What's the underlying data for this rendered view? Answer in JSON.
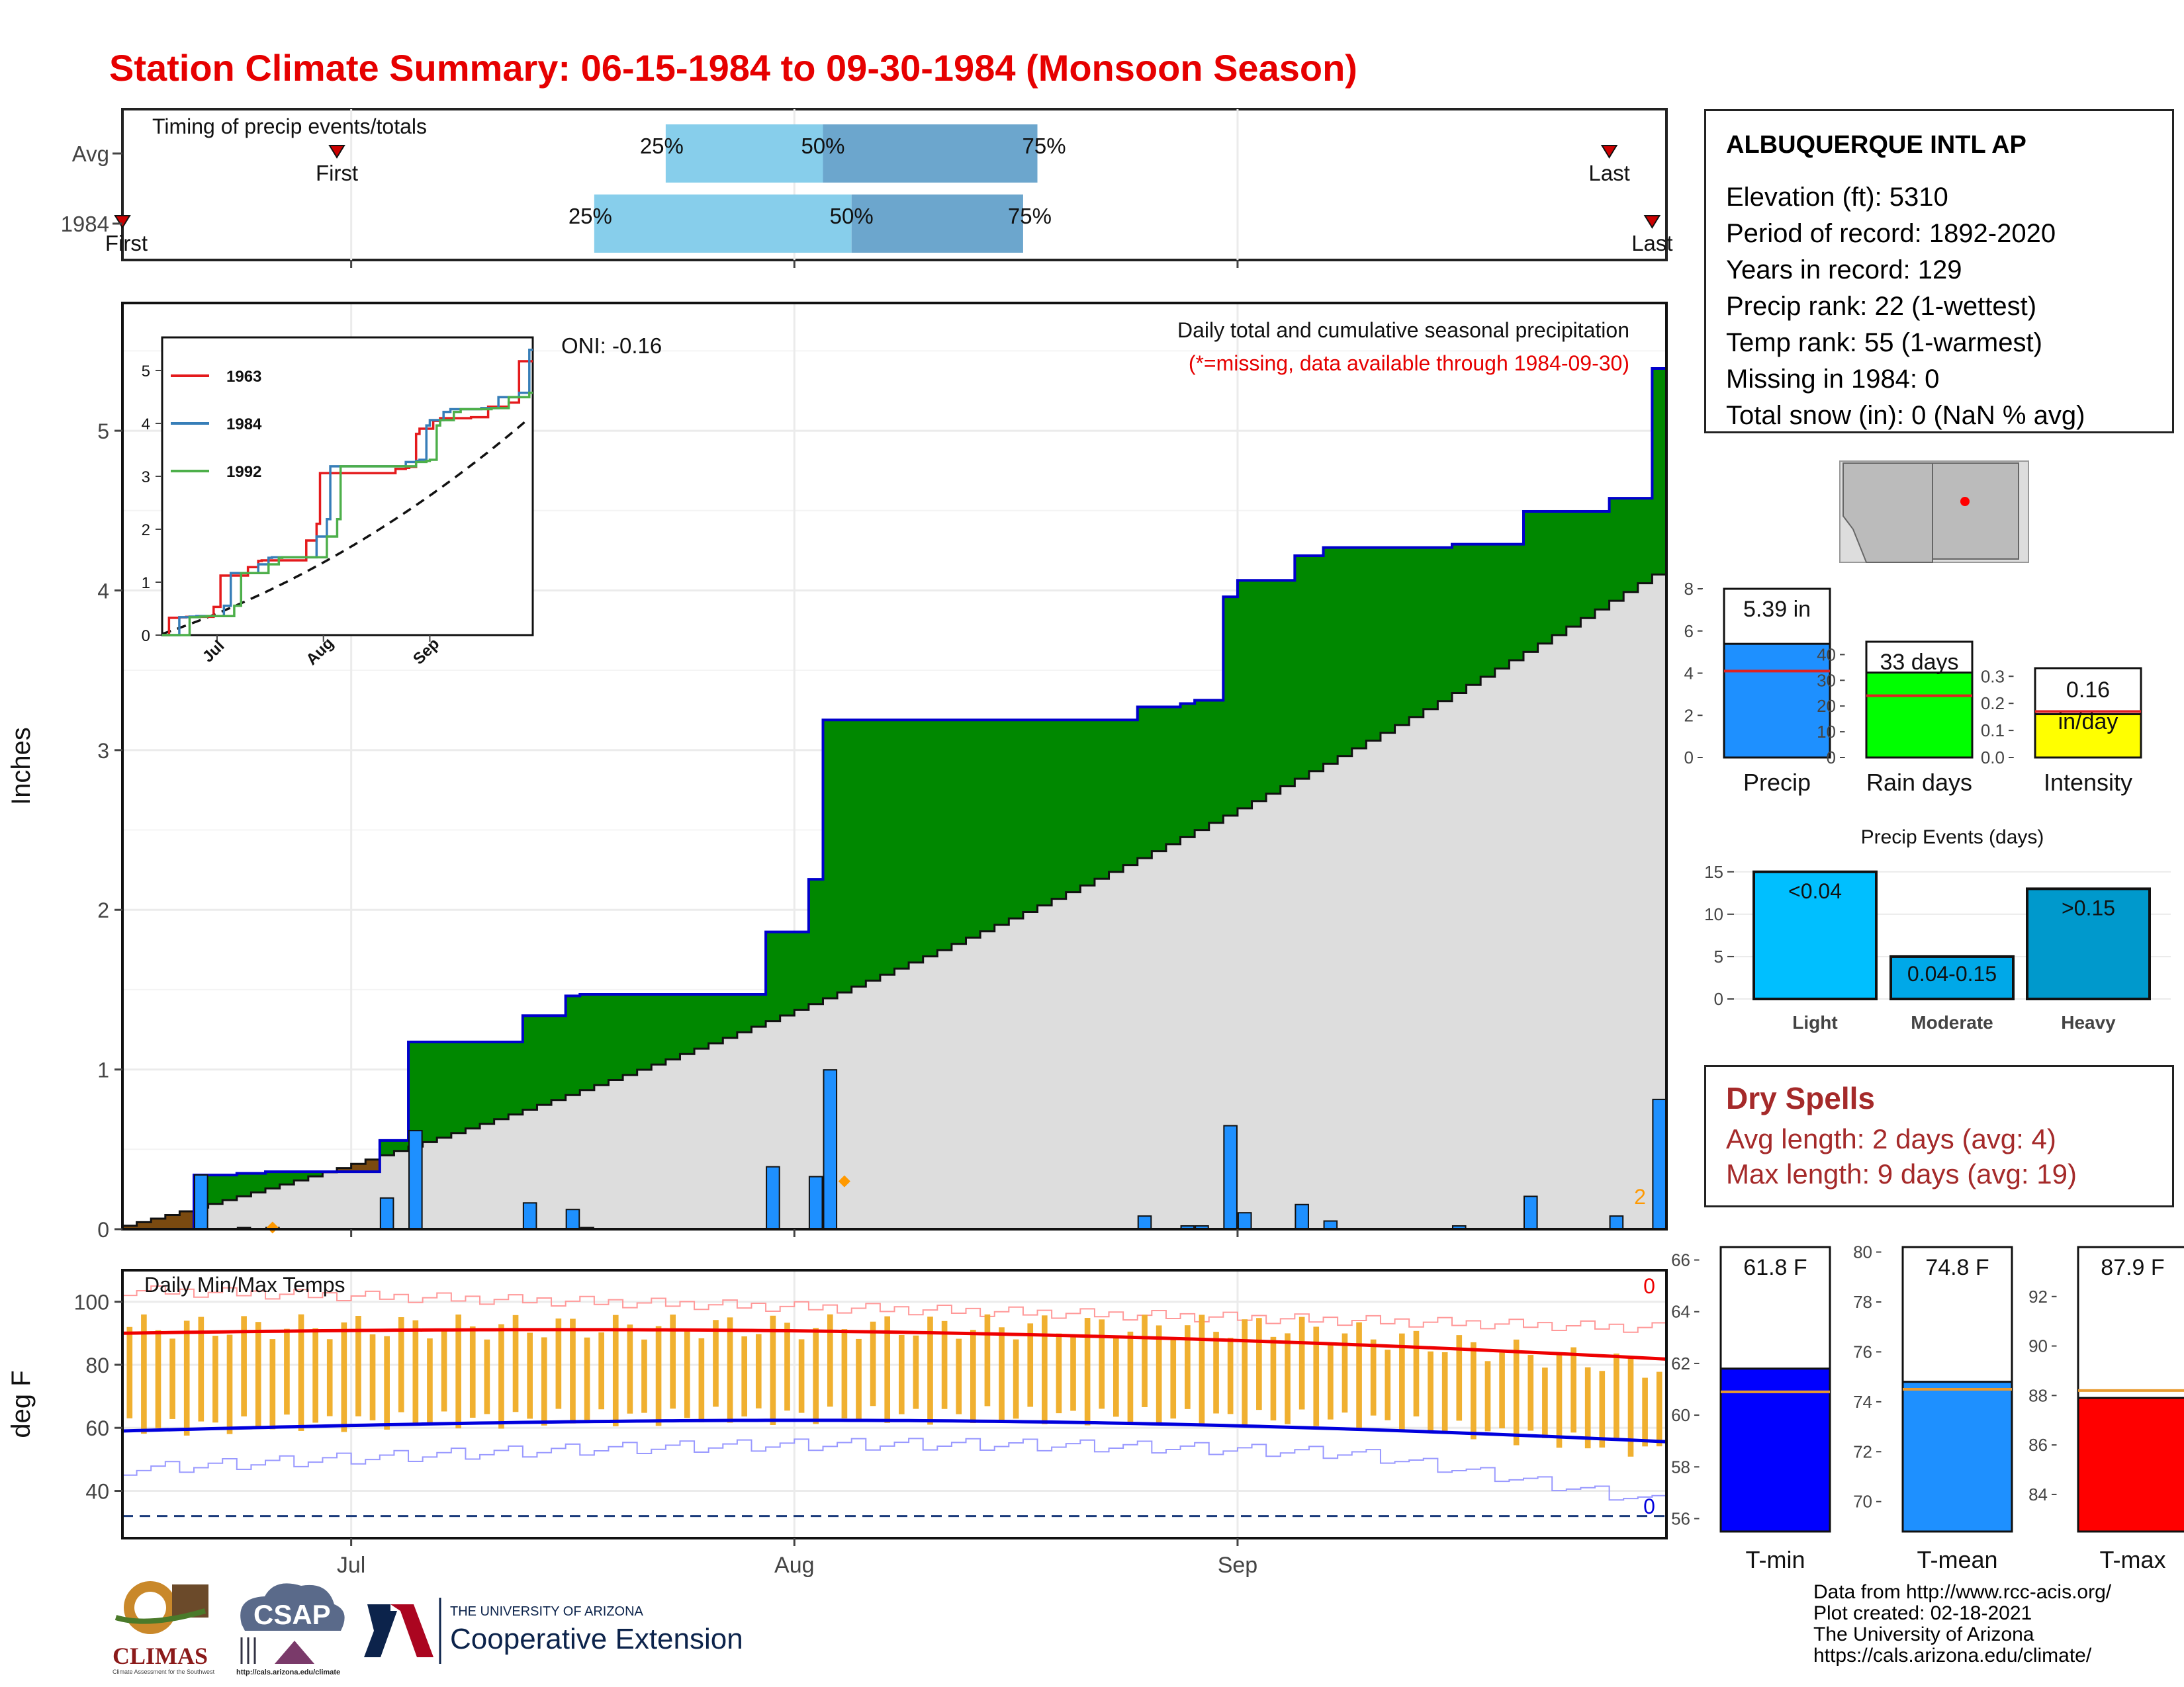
{
  "title": "Station Climate Summary: 06-15-1984 to 09-30-1984 (Monsoon Season)",
  "chart_data": [
    {
      "type": "bar",
      "name": "timing",
      "title": "Timing of precip events/totals",
      "rows": [
        {
          "label": "Avg",
          "first_date": "1984-06-30",
          "last_date": "1984-09-27",
          "q25_date": "1984-07-23",
          "q50_date": "1984-08-03",
          "q75_date": "1984-08-18"
        },
        {
          "label": "1984",
          "first_date": "1984-06-15",
          "last_date": "1984-09-30",
          "q25_date": "1984-07-18",
          "q50_date": "1984-08-05",
          "q75_date": "1984-08-17"
        }
      ],
      "q_labels": [
        "25%",
        "50%",
        "75%"
      ],
      "first_label": "First",
      "last_label": "Last",
      "first_label_1984": "First",
      "colors": {
        "q1": "#87ceeb",
        "q2": "#6ca6cd",
        "marker": "#cc0000"
      }
    },
    {
      "type": "area",
      "name": "precip",
      "title": "Daily total and cumulative seasonal precipitation",
      "subtitle": "(*=missing, data available through 1984-09-30)",
      "ylabel": "Inches",
      "ylim": [
        0,
        5.8
      ],
      "yticks": [
        "0",
        "1",
        "2",
        "3",
        "4",
        "5"
      ],
      "xticks": [
        "Jul",
        "Aug",
        "Sep"
      ],
      "oni_label": "ONI: -0.16",
      "count_label": "2",
      "start_date": "1984-06-15",
      "n_days": 108,
      "daily_1984": [
        0,
        0,
        0,
        0,
        0,
        0,
        0,
        0,
        0,
        0,
        0.33,
        0,
        0,
        0,
        0,
        0,
        0.01,
        0,
        0,
        0.01,
        0,
        0,
        0,
        0,
        0,
        0,
        0,
        0,
        0,
        0,
        0,
        0,
        0,
        0,
        0,
        0,
        0.19,
        0,
        0,
        0,
        0.6,
        0,
        0,
        0,
        0,
        0,
        0,
        0,
        0,
        0,
        0,
        0,
        0,
        0,
        0,
        0.16,
        0,
        0,
        0,
        0,
        0,
        0,
        0.12,
        0,
        0.01,
        0,
        0,
        0,
        0,
        0,
        0,
        0,
        0,
        0,
        0,
        0,
        0,
        0,
        0,
        0,
        0,
        0,
        0,
        0,
        0,
        0,
        0,
        0,
        0,
        0,
        0.38,
        0,
        0,
        0,
        0,
        0,
        0.32,
        0,
        0.97,
        0,
        0,
        0,
        0,
        0,
        0,
        0,
        0,
        0
      ],
      "daily_1984_tail": [
        0,
        0,
        0,
        0,
        0,
        0,
        0,
        0,
        0,
        0,
        0,
        0,
        0,
        0,
        0,
        0,
        0,
        0,
        0,
        0,
        0,
        0,
        0,
        0,
        0,
        0,
        0,
        0,
        0,
        0,
        0,
        0,
        0,
        0.08,
        0,
        0,
        0,
        0,
        0,
        0.02,
        0,
        0.02,
        0,
        0,
        0,
        0.15,
        0.48,
        0.1,
        0,
        0,
        0,
        0,
        0,
        0,
        0,
        0,
        0.15,
        0,
        0,
        0,
        0.05,
        0,
        0,
        0,
        0,
        0,
        0,
        0,
        0,
        0,
        0,
        0,
        0,
        0,
        0,
        0,
        0,
        0,
        0.02,
        0,
        0,
        0,
        0,
        0,
        0,
        0,
        0,
        0.2,
        0,
        0,
        0,
        0,
        0,
        0,
        0,
        0,
        0,
        0,
        0,
        0.08,
        0,
        0,
        0,
        0,
        0,
        0.19,
        0.6,
        0,
        0,
        0,
        0
      ],
      "cum_avg_end": 4.1,
      "total_1984": 5.39,
      "colors": {
        "above": "#008800",
        "below": "#7a4a10",
        "avg": "#dddddd",
        "line": "#0000cc",
        "bars": "#1e90ff",
        "missing": "#ff9900"
      }
    },
    {
      "type": "line",
      "name": "inset",
      "series": [
        {
          "name": "1963",
          "color": "#e41a1c"
        },
        {
          "name": "1984",
          "color": "#377eb8"
        },
        {
          "name": "1992",
          "color": "#4daf4a"
        }
      ],
      "yticks": [
        "0",
        "1",
        "2",
        "3",
        "4",
        "5"
      ],
      "xticks": [
        "Jul",
        "Aug",
        "Sep"
      ],
      "ylim": [
        0,
        5.5
      ]
    },
    {
      "type": "line",
      "name": "temps",
      "title": "Daily Min/Max Temps",
      "ylabel": "deg F",
      "ylim": [
        25,
        110
      ],
      "yticks": [
        "40",
        "60",
        "80",
        "100"
      ],
      "xticks": [
        "Jul",
        "Aug",
        "Sep"
      ],
      "freeze_line": 32,
      "count_max": "0",
      "count_min": "0",
      "colors": {
        "bars": "#f0b030",
        "avgmax": "#ee0000",
        "avgmin": "#0000dd",
        "recmax": "#ff9999",
        "recmin": "#9999ff"
      }
    },
    {
      "type": "bar",
      "name": "season_totals",
      "items": [
        {
          "name": "Precip",
          "value": 5.39,
          "avg": 4.1,
          "label": "5.39 in",
          "ylim": [
            0,
            8
          ],
          "yticks": [
            "0",
            "2",
            "4",
            "6",
            "8"
          ],
          "color": "#1e90ff"
        },
        {
          "name": "Rain days",
          "value": 33,
          "avg": 24,
          "label": "33 days",
          "ylim": [
            0,
            45
          ],
          "yticks": [
            "0",
            "10",
            "20",
            "30",
            "40"
          ],
          "color": "#00ff00"
        },
        {
          "name": "Intensity",
          "value": 0.16,
          "avg": 0.17,
          "label_l1": "0.16",
          "label_l2": "in/day",
          "ylim": [
            0,
            0.33
          ],
          "yticks": [
            "0.0",
            "0.1",
            "0.2",
            "0.3"
          ],
          "color": "#ffff00"
        }
      ]
    },
    {
      "type": "bar",
      "name": "precip_events",
      "title": "Precip Events (days)",
      "categories": [
        "Light",
        "Moderate",
        "Heavy"
      ],
      "values": [
        15,
        5,
        13
      ],
      "labels": [
        "<0.04",
        "0.04-0.15",
        ">0.15"
      ],
      "ylim": [
        0,
        16
      ],
      "yticks": [
        "0",
        "5",
        "10",
        "15"
      ],
      "colors": [
        "#00bfff",
        "#00a8e8",
        "#0099cc"
      ]
    },
    {
      "type": "bar",
      "name": "temp_summary",
      "items": [
        {
          "name": "T-min",
          "value": 61.8,
          "avg": 60.9,
          "label": "61.8 F",
          "ylim": [
            55.5,
            66.5
          ],
          "yticks": [
            "56",
            "58",
            "60",
            "62",
            "64",
            "66"
          ],
          "color": "#0000ff"
        },
        {
          "name": "T-mean",
          "value": 74.8,
          "avg": 74.5,
          "label": "74.8 F",
          "ylim": [
            68.8,
            80.2
          ],
          "yticks": [
            "70",
            "72",
            "74",
            "76",
            "78",
            "80"
          ],
          "color": "#1e90ff"
        },
        {
          "name": "T-max",
          "value": 87.9,
          "avg": 88.2,
          "label": "87.9 F",
          "ylim": [
            82.5,
            94
          ],
          "yticks": [
            "84",
            "86",
            "88",
            "90",
            "92"
          ],
          "color": "#ff0000"
        }
      ]
    }
  ],
  "station": {
    "name": "ALBUQUERQUE INTL AP",
    "lines": [
      "Elevation (ft): 5310",
      "Period of record: 1892-2020",
      "Years in record: 129",
      "Precip rank: 22 (1-wettest)",
      "Temp rank: 55 (1-warmest)",
      "Missing in 1984: 0",
      "Total snow (in): 0 (NaN % avg)"
    ]
  },
  "dry_spells": {
    "title": "Dry Spells",
    "avg": "Avg length: 2 days (avg: 4)",
    "max": "Max length: 9 days (avg: 19)"
  },
  "footer": {
    "lines": [
      "Data from http://www.rcc-acis.org/",
      "Plot created: 02-18-2021",
      "The University of Arizona",
      "https://cals.arizona.edu/climate/"
    ]
  },
  "logos": {
    "climas": "CLIMAS",
    "climas_sub": "Climate Assessment for the Southwest",
    "csap": "CSAP",
    "csap_url": "http://cals.arizona.edu/climate",
    "ua_small": "THE UNIVERSITY OF ARIZONA",
    "ua_big": "Cooperative Extension"
  }
}
